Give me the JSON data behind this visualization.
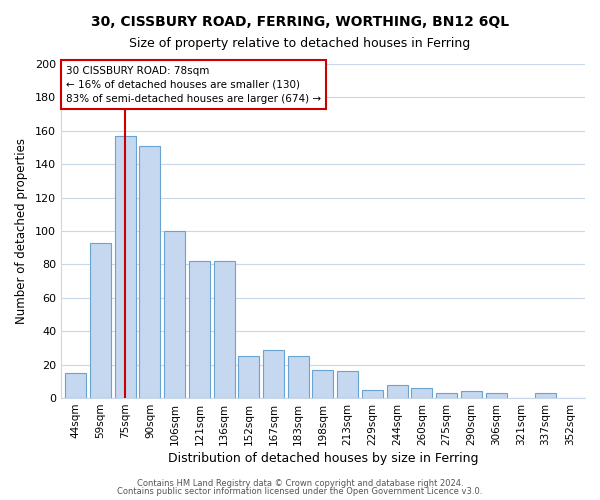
{
  "title": "30, CISSBURY ROAD, FERRING, WORTHING, BN12 6QL",
  "subtitle": "Size of property relative to detached houses in Ferring",
  "xlabel": "Distribution of detached houses by size in Ferring",
  "ylabel": "Number of detached properties",
  "categories": [
    "44sqm",
    "59sqm",
    "75sqm",
    "90sqm",
    "106sqm",
    "121sqm",
    "136sqm",
    "152sqm",
    "167sqm",
    "183sqm",
    "198sqm",
    "213sqm",
    "229sqm",
    "244sqm",
    "260sqm",
    "275sqm",
    "290sqm",
    "306sqm",
    "321sqm",
    "337sqm",
    "352sqm"
  ],
  "values": [
    15,
    93,
    157,
    151,
    100,
    82,
    82,
    25,
    29,
    25,
    17,
    16,
    5,
    8,
    6,
    3,
    4,
    3,
    0,
    3,
    0
  ],
  "bar_color": "#c5d8ef",
  "bar_edge_color": "#6aa3cf",
  "vline_x_index": 2,
  "vline_color": "#cc0000",
  "annotation_line1": "30 CISSBURY ROAD: 78sqm",
  "annotation_line2": "← 16% of detached houses are smaller (130)",
  "annotation_line3": "83% of semi-detached houses are larger (674) →",
  "annotation_box_color": "#ffffff",
  "annotation_box_edge": "#cc0000",
  "ylim": [
    0,
    200
  ],
  "yticks": [
    0,
    20,
    40,
    60,
    80,
    100,
    120,
    140,
    160,
    180,
    200
  ],
  "footer1": "Contains HM Land Registry data © Crown copyright and database right 2024.",
  "footer2": "Contains public sector information licensed under the Open Government Licence v3.0.",
  "background_color": "#ffffff",
  "plot_background": "#ffffff",
  "grid_color": "#c8d8e8",
  "title_fontsize": 10,
  "subtitle_fontsize": 9
}
